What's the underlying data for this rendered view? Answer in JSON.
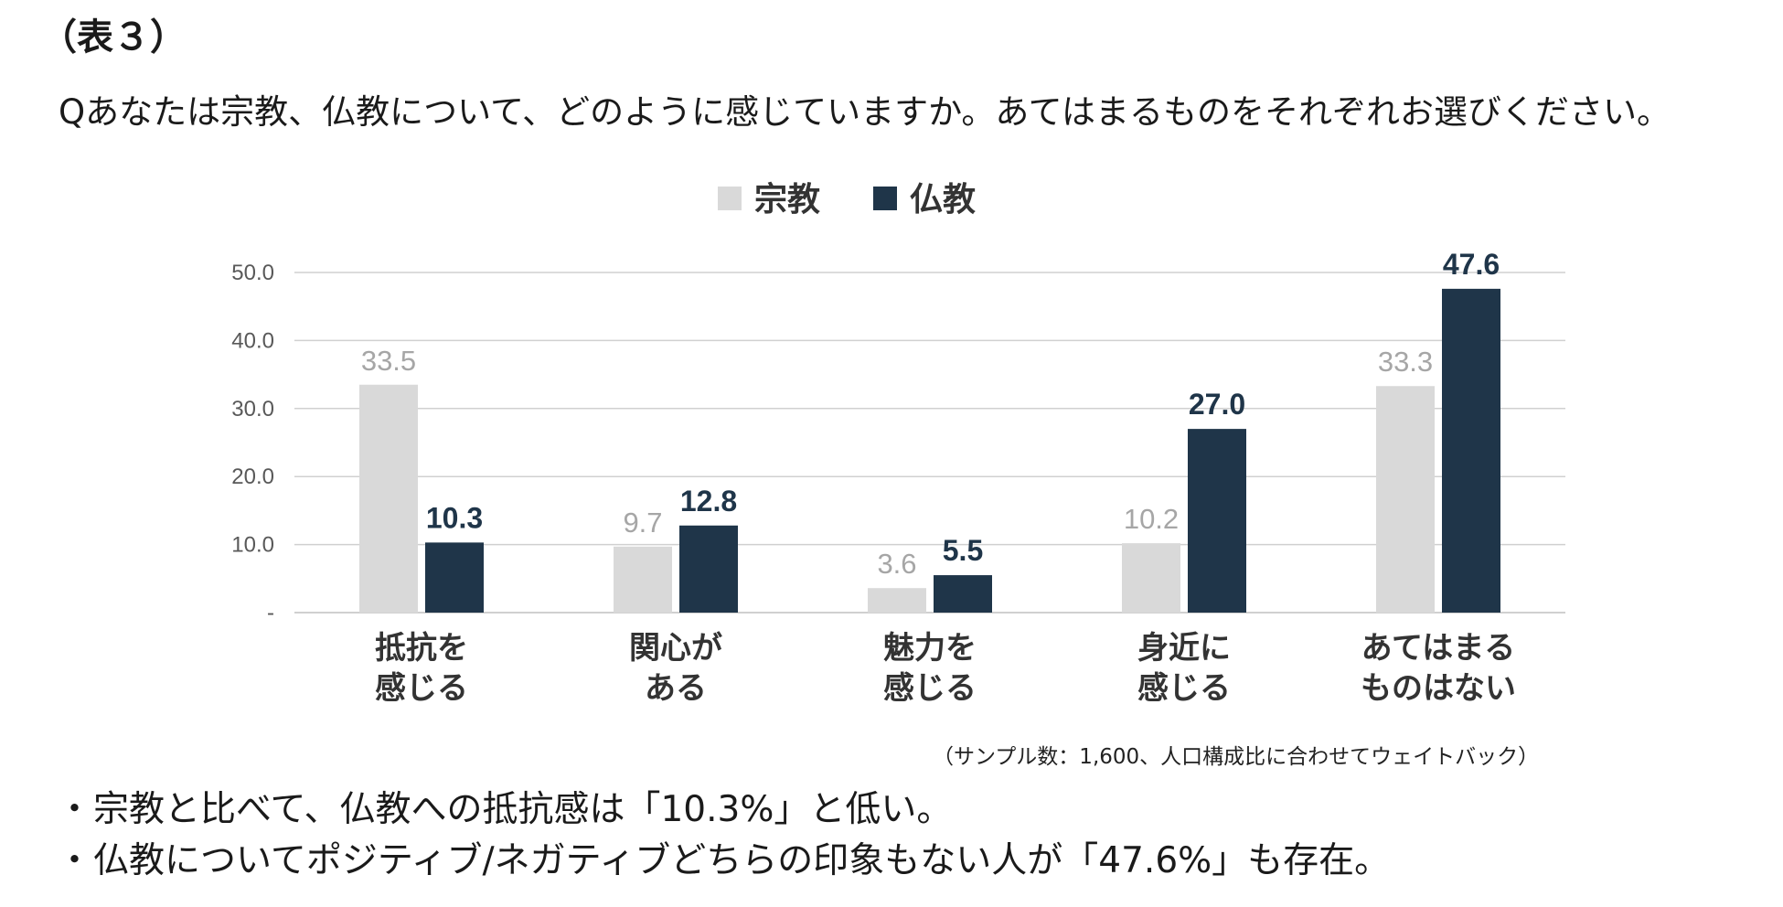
{
  "table_label": "（表３）",
  "question": "Qあなたは宗教、仏教について、どのように感じていますか。あてはまるものをそれぞれお選びください。",
  "chart_data": {
    "type": "bar",
    "title": "",
    "categories": [
      [
        "抵抗を",
        "感じる"
      ],
      [
        "関心が",
        "ある"
      ],
      [
        "魅力を",
        "感じる"
      ],
      [
        "身近に",
        "感じる"
      ],
      [
        "あてはまる",
        "ものはない"
      ]
    ],
    "series": [
      {
        "name": "宗教",
        "values": [
          33.5,
          9.7,
          3.6,
          10.2,
          33.3
        ],
        "labels": [
          "33.5",
          "9.7",
          "3.6",
          "10.2",
          "33.3"
        ],
        "color": "#d9d9d9",
        "label_color": "#a6a6a6"
      },
      {
        "name": "仏教",
        "values": [
          10.3,
          12.8,
          5.5,
          27.0,
          47.6
        ],
        "labels": [
          "10.3",
          "12.8",
          "5.5",
          "27.0",
          "47.6"
        ],
        "color": "#1f3549",
        "label_color": "#1f3549"
      }
    ],
    "ylim": [
      0,
      50
    ],
    "yticks": [
      0,
      10,
      20,
      30,
      40,
      50
    ],
    "ytick_labels": [
      "-",
      "10.0",
      "20.0",
      "30.0",
      "40.0",
      "50.0"
    ],
    "legend_position": "top-center",
    "grid": true,
    "xlabel": "",
    "ylabel": ""
  },
  "sample_note": "（サンプル数：1,600、人口構成比に合わせてウェイトバック）",
  "bullets": [
    "宗教と比べて、仏教への抵抗感は「10.3%」と低い。",
    "仏教についてポジティブ/ネガティブどちらの印象もない人が「47.6%」も存在。"
  ],
  "bullet_mark": "・"
}
